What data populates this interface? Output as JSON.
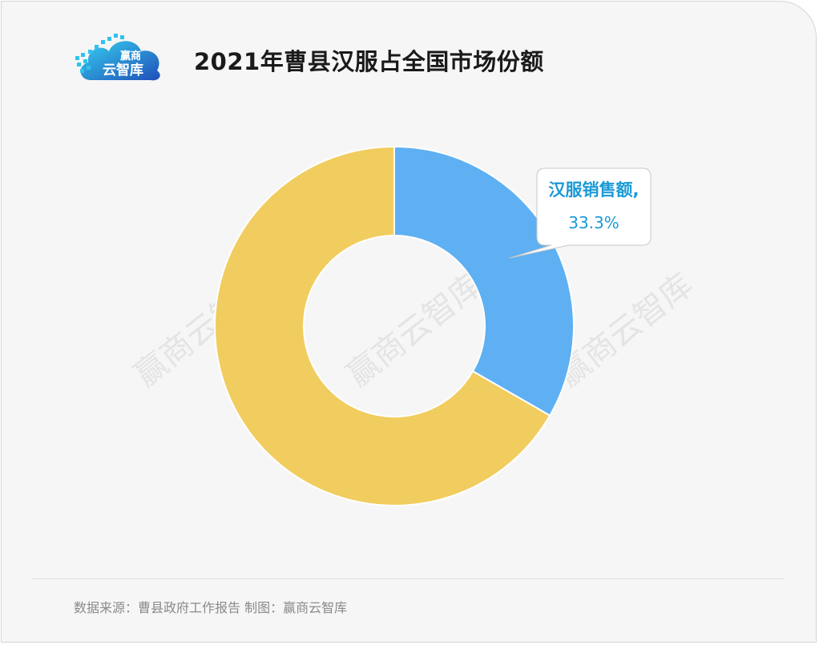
{
  "header": {
    "title": "2021年曹县汉服占全国市场份额",
    "logo_text_top": "赢商",
    "logo_text_bottom": "云智库"
  },
  "watermarks": [
    "赢商云智库",
    "赢商云智库",
    "赢商云智库"
  ],
  "footer": {
    "source": "数据来源：曹县政府工作报告  制图：赢商云智库"
  },
  "colors": {
    "card_background": "#f6f6f6",
    "slice_blue": "#5eb0f2",
    "slice_yellow": "#f1cd5f",
    "label_text": "#1a9ad6"
  },
  "chart_data": {
    "type": "pie",
    "variant": "donut",
    "title": "2021年曹县汉服占全国市场份额",
    "slices": [
      {
        "label": "汉服销售额",
        "value": 33.3,
        "value_label": "33.3%",
        "color": "#5eb0f2",
        "show_label": true
      },
      {
        "label": "",
        "value": 66.7,
        "value_label": "",
        "color": "#f1cd5f",
        "show_label": false
      }
    ],
    "legend": "none",
    "start_angle": "12 o'clock",
    "direction": "clockwise"
  }
}
